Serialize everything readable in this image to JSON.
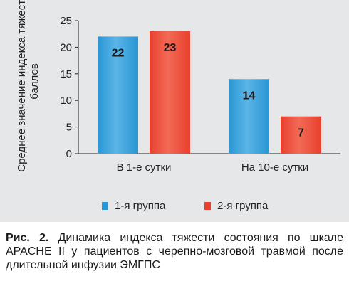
{
  "chart_data": {
    "type": "bar",
    "categories": [
      "В 1-е сутки",
      "На 10-е сутки"
    ],
    "series": [
      {
        "name": "1-я группа",
        "values": [
          22,
          14
        ],
        "color": "#2a96d4",
        "color_light": "#5ab5e6"
      },
      {
        "name": "2-я группа",
        "values": [
          23,
          7
        ],
        "color": "#e8402e",
        "color_light": "#f26a55"
      }
    ],
    "ylabel": "Среднее значение индекса тяжести, баллов",
    "ylim": [
      0,
      25
    ],
    "yticks": [
      0,
      5,
      10,
      15,
      20,
      25
    ],
    "grid": false,
    "legend": "bottom",
    "data_labels": true
  },
  "caption": {
    "prefix": "Рис. 2.",
    "text": "Динамика индекса тяжести состояния по шкале APACHE II у пациентов с черепно-мозговой травмой после длительной инфузии ЭМГПС"
  }
}
